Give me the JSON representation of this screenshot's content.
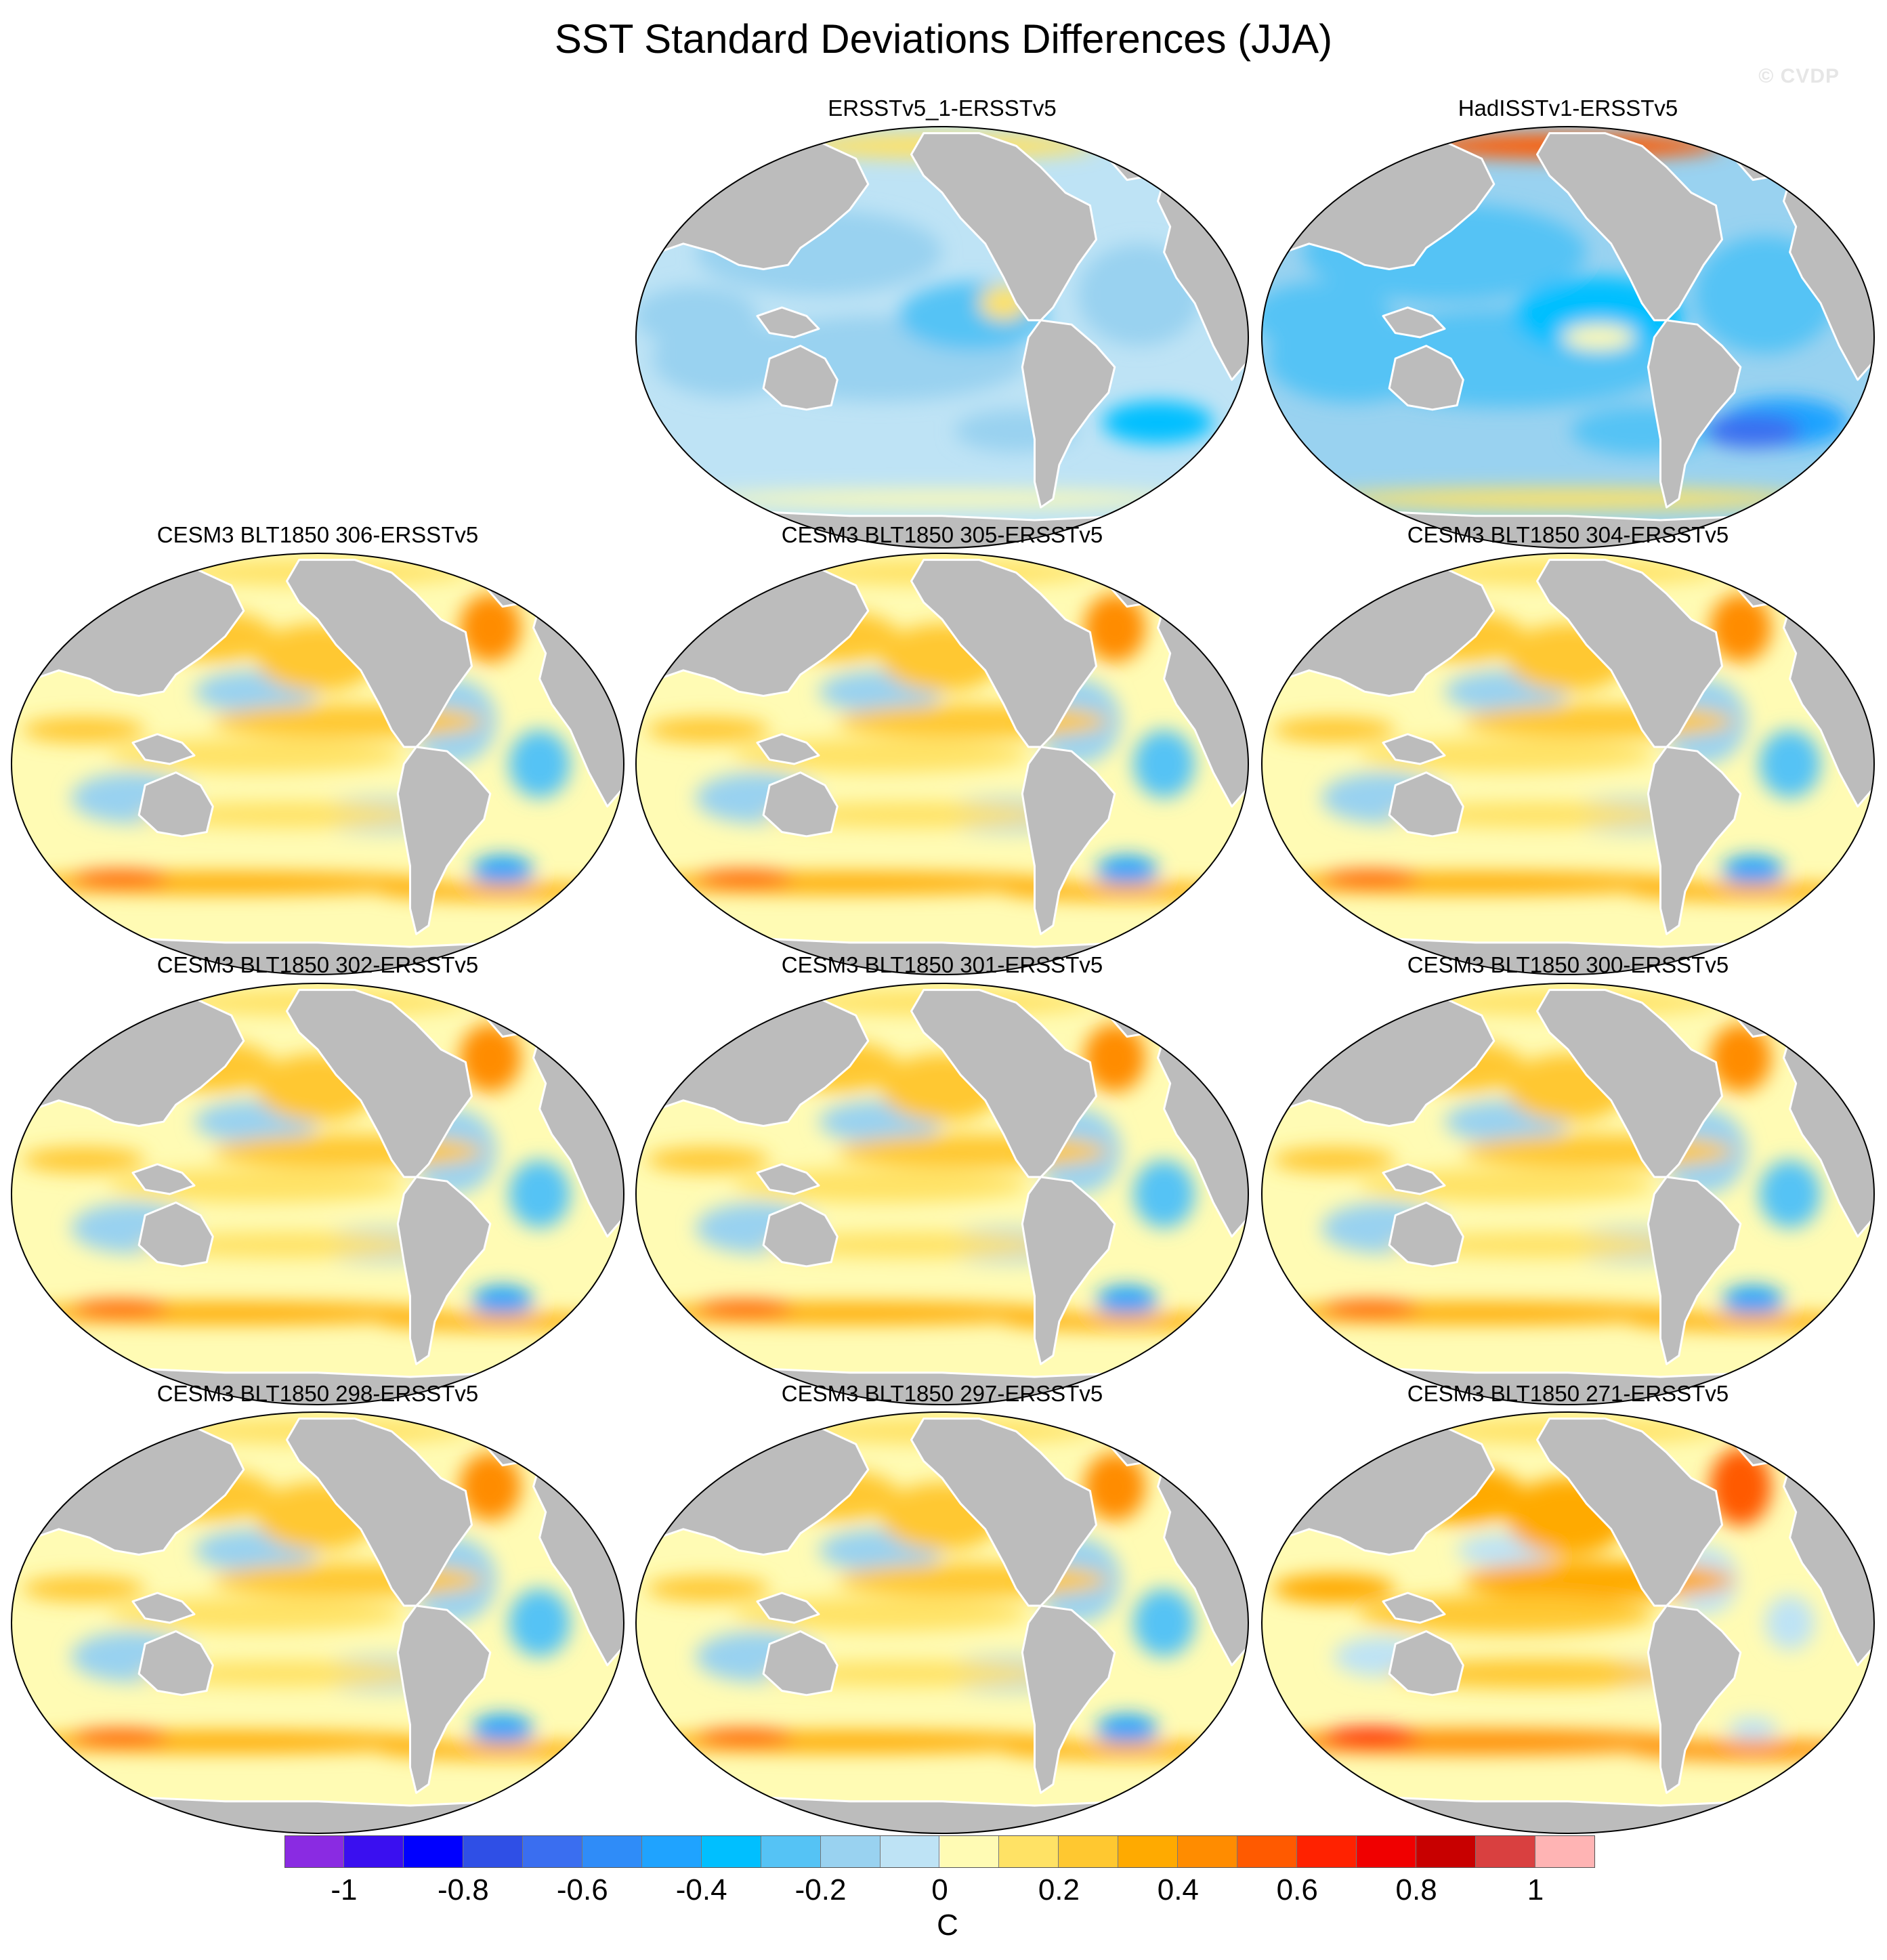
{
  "title": "SST Standard Deviations Differences (JJA)",
  "watermark": "© CVDP",
  "panels": [
    {
      "title": "ERSSTv5_1-ERSSTv5",
      "kind": "obs1"
    },
    {
      "title": "HadISSTv1-ERSSTv5",
      "kind": "obs2"
    },
    {
      "title": "CESM3 BLT1850 306-ERSSTv5",
      "kind": "model"
    },
    {
      "title": "CESM3 BLT1850 305-ERSSTv5",
      "kind": "model"
    },
    {
      "title": "CESM3 BLT1850 304-ERSSTv5",
      "kind": "model"
    },
    {
      "title": "CESM3 BLT1850 302-ERSSTv5",
      "kind": "model"
    },
    {
      "title": "CESM3 BLT1850 301-ERSSTv5",
      "kind": "model"
    },
    {
      "title": "CESM3 BLT1850 300-ERSSTv5",
      "kind": "model"
    },
    {
      "title": "CESM3 BLT1850 298-ERSSTv5",
      "kind": "model"
    },
    {
      "title": "CESM3 BLT1850 297-ERSSTv5",
      "kind": "model"
    },
    {
      "title": "CESM3 BLT1850 271-ERSSTv5",
      "kind": "model_warm"
    }
  ],
  "colorbar": {
    "unit": "C",
    "colors": [
      "#8a2be2",
      "#3a0ff0",
      "#0000ff",
      "#2f4fe6",
      "#3a6ef0",
      "#2f8cf8",
      "#1fa3ff",
      "#00bfff",
      "#55c3f5",
      "#99d2f0",
      "#bee3f5",
      "#fffbb4",
      "#ffe265",
      "#ffc830",
      "#ffaa00",
      "#ff8c00",
      "#ff5a00",
      "#ff2200",
      "#f00000",
      "#c80000",
      "#d94040",
      "#ffb4b4"
    ],
    "tick_labels": [
      "-1",
      "-0.8",
      "-0.6",
      "-0.4",
      "-0.2",
      "0",
      "0.2",
      "0.4",
      "0.6",
      "0.8",
      "1"
    ]
  }
}
